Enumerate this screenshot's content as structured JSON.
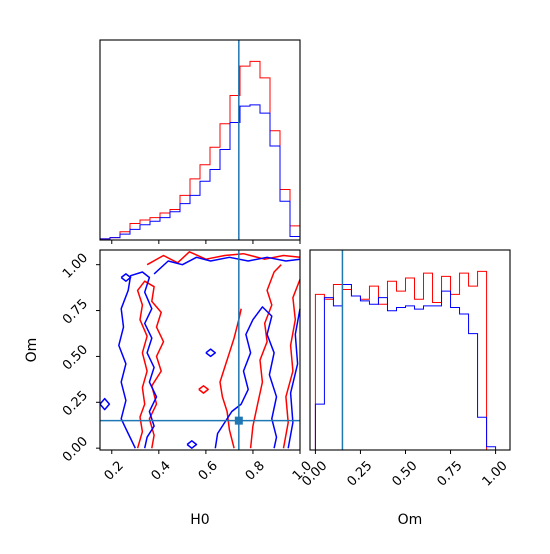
{
  "chart_data": {
    "type": "corner",
    "parameters": [
      "H0",
      "Om"
    ],
    "truths": {
      "H0": 0.74,
      "Om": 0.15
    },
    "colors": {
      "series_a": "#ff0000",
      "series_b": "#0000ff",
      "truth": "#1f77b4"
    },
    "panels": [
      {
        "id": "h0-marginal",
        "type": "histogram",
        "xlim": [
          0.15,
          1.0
        ],
        "bin_edges": [
          0.15,
          0.1925,
          0.235,
          0.2775,
          0.32,
          0.3625,
          0.405,
          0.4475,
          0.49,
          0.5325,
          0.575,
          0.6175,
          0.66,
          0.7025,
          0.745,
          0.7875,
          0.83,
          0.8725,
          0.915,
          0.9575,
          1.0
        ],
        "series": [
          {
            "key": "series_a",
            "values": [
              1,
              2,
              7,
              14,
              17,
              19,
              23,
              26,
              38,
              52,
              64,
              79,
              99,
              123,
              148,
              152,
              138,
              93,
              43,
              12
            ]
          },
          {
            "key": "series_b",
            "values": [
              1,
              2,
              5,
              9,
              13,
              16,
              19,
              24,
              31,
              38,
              50,
              60,
              77,
              100,
              114,
              115,
              108,
              80,
              33,
              3
            ]
          }
        ]
      },
      {
        "id": "h0-om-joint",
        "type": "contour",
        "xlim": [
          0.15,
          1.0
        ],
        "ylim": [
          -0.01,
          1.08
        ],
        "xticks": [
          0.2,
          0.4,
          0.6,
          0.8,
          1.0
        ],
        "xticklabels": [
          "0.2",
          "0.4",
          "0.6",
          "0.8",
          "1.0"
        ],
        "yticks": [
          0.0,
          0.25,
          0.5,
          0.75,
          1.0
        ],
        "yticklabels": [
          "0.00",
          "0.25",
          "0.50",
          "0.75",
          "1.00"
        ],
        "xlabel": "H0",
        "ylabel": "Om",
        "contours": [
          {
            "key": "series_a",
            "points": [
              [
                0.31,
                0.0
              ],
              [
                0.33,
                0.09
              ],
              [
                0.32,
                0.17
              ],
              [
                0.34,
                0.24
              ],
              [
                0.33,
                0.33
              ],
              [
                0.35,
                0.42
              ],
              [
                0.33,
                0.52
              ],
              [
                0.35,
                0.61
              ],
              [
                0.32,
                0.7
              ],
              [
                0.33,
                0.78
              ],
              [
                0.31,
                0.86
              ],
              [
                0.34,
                0.91
              ],
              [
                0.38,
                0.88
              ],
              [
                0.37,
                0.8
              ],
              [
                0.41,
                0.74
              ],
              [
                0.39,
                0.66
              ],
              [
                0.42,
                0.58
              ],
              [
                0.39,
                0.5
              ],
              [
                0.41,
                0.42
              ],
              [
                0.37,
                0.34
              ],
              [
                0.39,
                0.24
              ],
              [
                0.36,
                0.16
              ],
              [
                0.38,
                0.07
              ],
              [
                0.37,
                0.0
              ]
            ]
          },
          {
            "key": "series_a",
            "points": [
              [
                0.35,
                1.0
              ],
              [
                0.42,
                1.05
              ],
              [
                0.48,
                1.01
              ],
              [
                0.53,
                1.07
              ],
              [
                0.6,
                1.03
              ],
              [
                0.68,
                1.05
              ],
              [
                0.76,
                1.06
              ],
              [
                0.85,
                1.03
              ],
              [
                0.93,
                1.05
              ],
              [
                1.0,
                1.04
              ]
            ]
          },
          {
            "key": "series_a",
            "points": [
              [
                0.72,
                0.0
              ],
              [
                0.7,
                0.1
              ],
              [
                0.69,
                0.2
              ],
              [
                0.67,
                0.28
              ],
              [
                0.66,
                0.36
              ],
              [
                0.68,
                0.44
              ],
              [
                0.7,
                0.52
              ],
              [
                0.72,
                0.6
              ],
              [
                0.74,
                0.7
              ],
              [
                0.75,
                0.76
              ]
            ]
          },
          {
            "key": "series_a",
            "points": [
              [
                0.79,
                0.0
              ],
              [
                0.8,
                0.12
              ],
              [
                0.82,
                0.24
              ],
              [
                0.84,
                0.36
              ],
              [
                0.83,
                0.48
              ],
              [
                0.86,
                0.58
              ],
              [
                0.85,
                0.68
              ],
              [
                0.88,
                0.78
              ],
              [
                0.86,
                0.86
              ],
              [
                0.89,
                0.96
              ],
              [
                0.92,
                1.0
              ]
            ]
          },
          {
            "key": "series_a",
            "points": [
              [
                0.93,
                0.0
              ],
              [
                0.95,
                0.14
              ],
              [
                0.94,
                0.28
              ],
              [
                0.97,
                0.42
              ],
              [
                0.96,
                0.56
              ],
              [
                0.98,
                0.7
              ],
              [
                0.97,
                0.82
              ],
              [
                1.0,
                0.92
              ]
            ]
          },
          {
            "key": "series_b",
            "points": [
              [
                0.3,
                0.0
              ],
              [
                0.27,
                0.08
              ],
              [
                0.24,
                0.16
              ],
              [
                0.26,
                0.26
              ],
              [
                0.24,
                0.36
              ],
              [
                0.26,
                0.46
              ],
              [
                0.23,
                0.56
              ],
              [
                0.25,
                0.66
              ],
              [
                0.24,
                0.76
              ],
              [
                0.27,
                0.86
              ],
              [
                0.28,
                0.94
              ],
              [
                0.33,
                0.96
              ],
              [
                0.36,
                0.93
              ],
              [
                0.34,
                0.85
              ],
              [
                0.37,
                0.76
              ],
              [
                0.34,
                0.68
              ],
              [
                0.37,
                0.6
              ],
              [
                0.35,
                0.52
              ],
              [
                0.38,
                0.44
              ],
              [
                0.36,
                0.36
              ],
              [
                0.39,
                0.28
              ],
              [
                0.36,
                0.2
              ],
              [
                0.38,
                0.12
              ],
              [
                0.35,
                0.06
              ],
              [
                0.34,
                0.0
              ]
            ]
          },
          {
            "key": "series_b",
            "points": [
              [
                0.38,
                0.95
              ],
              [
                0.44,
                1.02
              ],
              [
                0.5,
                1.0
              ],
              [
                0.56,
                1.04
              ],
              [
                0.62,
                1.02
              ],
              [
                0.7,
                1.04
              ],
              [
                0.78,
                1.02
              ],
              [
                0.86,
                1.04
              ],
              [
                0.94,
                1.02
              ],
              [
                1.0,
                1.03
              ]
            ]
          },
          {
            "key": "series_b",
            "points": [
              [
                0.64,
                0.0
              ],
              [
                0.65,
                0.08
              ],
              [
                0.68,
                0.14
              ],
              [
                0.71,
                0.2
              ],
              [
                0.75,
                0.24
              ],
              [
                0.78,
                0.32
              ],
              [
                0.76,
                0.42
              ],
              [
                0.79,
                0.52
              ],
              [
                0.77,
                0.62
              ],
              [
                0.8,
                0.7
              ],
              [
                0.84,
                0.77
              ],
              [
                0.88,
                0.72
              ],
              [
                0.86,
                0.62
              ],
              [
                0.89,
                0.52
              ],
              [
                0.87,
                0.4
              ],
              [
                0.9,
                0.28
              ],
              [
                0.88,
                0.16
              ],
              [
                0.9,
                0.06
              ],
              [
                0.89,
                0.0
              ]
            ]
          },
          {
            "key": "series_b",
            "points": [
              [
                0.95,
                0.0
              ],
              [
                0.97,
                0.14
              ],
              [
                0.96,
                0.3
              ],
              [
                0.99,
                0.46
              ],
              [
                0.98,
                0.62
              ],
              [
                1.0,
                0.76
              ]
            ]
          },
          {
            "key": "series_b",
            "points": [
              [
                0.15,
                0.24
              ],
              [
                0.17,
                0.21
              ],
              [
                0.19,
                0.24
              ],
              [
                0.17,
                0.27
              ],
              [
                0.15,
                0.24
              ]
            ]
          },
          {
            "key": "series_b",
            "points": [
              [
                0.24,
                0.93
              ],
              [
                0.26,
                0.91
              ],
              [
                0.28,
                0.93
              ],
              [
                0.26,
                0.95
              ],
              [
                0.24,
                0.93
              ]
            ]
          },
          {
            "key": "series_b",
            "points": [
              [
                0.6,
                0.52
              ],
              [
                0.62,
                0.5
              ],
              [
                0.64,
                0.52
              ],
              [
                0.62,
                0.54
              ],
              [
                0.6,
                0.52
              ]
            ]
          },
          {
            "key": "series_b",
            "points": [
              [
                0.52,
                0.02
              ],
              [
                0.54,
                0.0
              ],
              [
                0.56,
                0.02
              ],
              [
                0.54,
                0.04
              ],
              [
                0.52,
                0.02
              ]
            ]
          },
          {
            "key": "series_a",
            "points": [
              [
                0.57,
                0.32
              ],
              [
                0.59,
                0.3
              ],
              [
                0.61,
                0.32
              ],
              [
                0.59,
                0.34
              ],
              [
                0.57,
                0.32
              ]
            ]
          }
        ]
      },
      {
        "id": "om-marginal",
        "type": "histogram",
        "xlim": [
          -0.03,
          1.08
        ],
        "xticks": [
          0.0,
          0.25,
          0.5,
          0.75,
          1.0
        ],
        "xticklabels": [
          "0.00",
          "0.25",
          "0.50",
          "0.75",
          "1.00"
        ],
        "xlabel": "Om",
        "bin_edges": [
          0.0,
          0.05,
          0.1,
          0.15,
          0.2,
          0.25,
          0.3,
          0.35,
          0.4,
          0.45,
          0.5,
          0.55,
          0.6,
          0.65,
          0.7,
          0.75,
          0.8,
          0.85,
          0.9,
          0.95,
          1.0
        ],
        "series": [
          {
            "key": "series_a",
            "values": [
              95,
              92,
              101,
              98,
              94,
              92,
              100,
              89,
              103,
              97,
              105,
              92,
              108,
              90,
              106,
              95,
              108,
              100,
              109,
              0
            ]
          },
          {
            "key": "series_b",
            "values": [
              28,
              93,
              88,
              101,
              94,
              91,
              89,
              93,
              85,
              87,
              88,
              86,
              88,
              88,
              97,
              87,
              83,
              71,
              20,
              2
            ]
          }
        ]
      }
    ]
  }
}
